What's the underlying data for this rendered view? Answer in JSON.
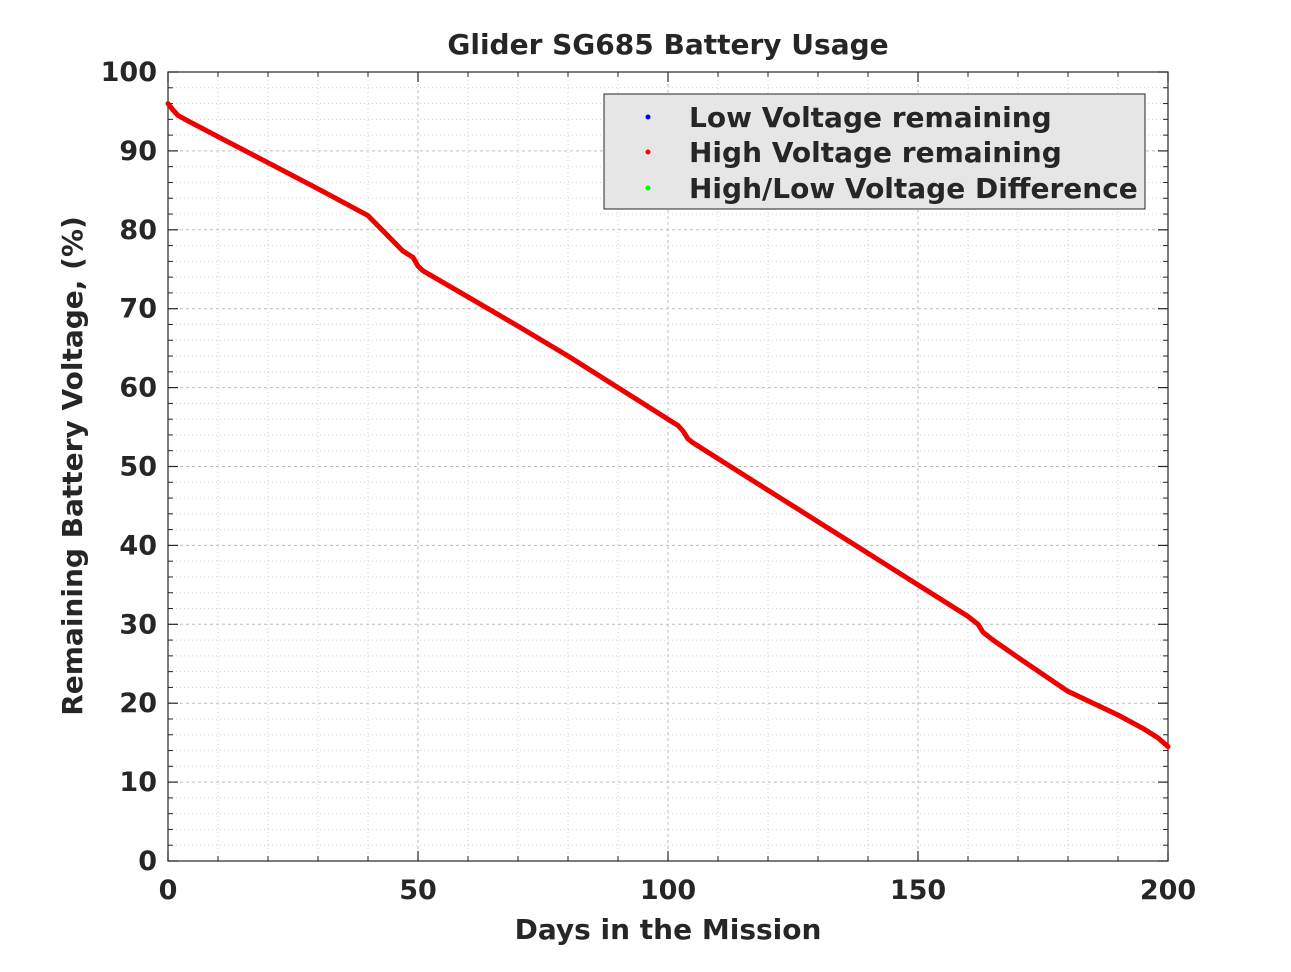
{
  "chart_data": {
    "type": "line",
    "title": "Glider SG685 Battery Usage",
    "xlabel": "Days in the Mission",
    "ylabel": "Remaining Battery Voltage, (%)",
    "xlim": [
      0,
      200
    ],
    "ylim": [
      0,
      100
    ],
    "x_ticks": [
      0,
      50,
      100,
      150,
      200
    ],
    "y_ticks": [
      0,
      10,
      20,
      30,
      40,
      50,
      60,
      70,
      80,
      90,
      100
    ],
    "x_minor_step": 10,
    "y_minor_step": 2,
    "grid": true,
    "legend_position": "top-right",
    "legend": [
      {
        "label": "Low Voltage remaining",
        "color": "#0000ff"
      },
      {
        "label": "High Voltage remaining",
        "color": "#ff0000"
      },
      {
        "label": "High/Low Voltage Difference",
        "color": "#00ff00"
      }
    ],
    "series": [
      {
        "name": "High Voltage remaining",
        "color": "#ee0000",
        "x": [
          0,
          1,
          2,
          4,
          10,
          20,
          30,
          40,
          47,
          49,
          50,
          51,
          60,
          70,
          80,
          90,
          100,
          102,
          103,
          104,
          105,
          110,
          120,
          130,
          140,
          150,
          160,
          162,
          163,
          165,
          170,
          180,
          181,
          190,
          195,
          198,
          200
        ],
        "y": [
          96,
          95.2,
          94.5,
          93.8,
          91.8,
          88.5,
          85.2,
          81.8,
          77.3,
          76.5,
          75.4,
          74.8,
          71.5,
          67.8,
          64.0,
          60.0,
          56.0,
          55.2,
          54.5,
          53.5,
          53.0,
          51.0,
          47.0,
          43.0,
          39.0,
          35.0,
          31.0,
          30.0,
          29.0,
          28.0,
          25.8,
          21.5,
          21.2,
          18.5,
          16.8,
          15.6,
          14.5
        ]
      }
    ]
  }
}
